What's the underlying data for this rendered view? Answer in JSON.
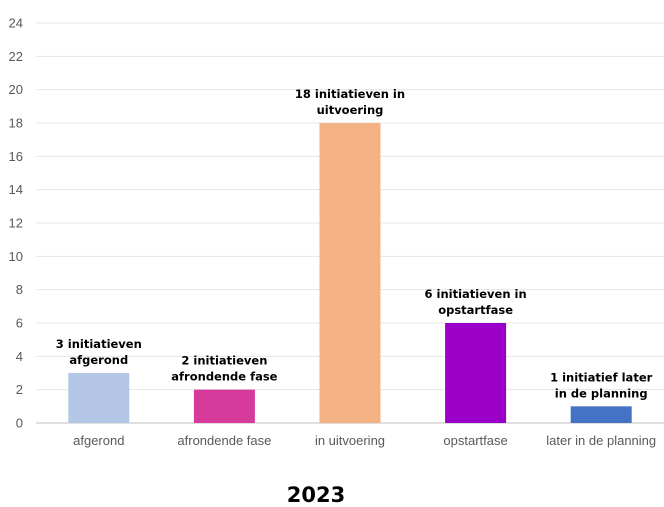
{
  "chart_data": {
    "type": "bar",
    "categories": [
      "afgerond",
      "afrondende fase",
      "in uitvoering",
      "opstartfase",
      "later in de planning"
    ],
    "values": [
      3,
      2,
      18,
      6,
      1
    ],
    "colors": [
      "#b4c7e7",
      "#d63a9b",
      "#f4b183",
      "#9b00c9",
      "#4472c4"
    ],
    "data_labels": [
      [
        "3 initiatieven",
        "afgerond"
      ],
      [
        "2 initiatieven",
        "afrondende fase"
      ],
      [
        "18 initiatieven in",
        "uitvoering"
      ],
      [
        "6 initiatieven in",
        "opstartfase"
      ],
      [
        "1 initiatief later",
        "in de planning"
      ]
    ],
    "title": "2023",
    "ylim": [
      0,
      24
    ],
    "yticks": [
      "0",
      "2",
      "4",
      "6",
      "8",
      "10",
      "12",
      "14",
      "16",
      "18",
      "20",
      "22",
      "24"
    ],
    "grid": true
  }
}
